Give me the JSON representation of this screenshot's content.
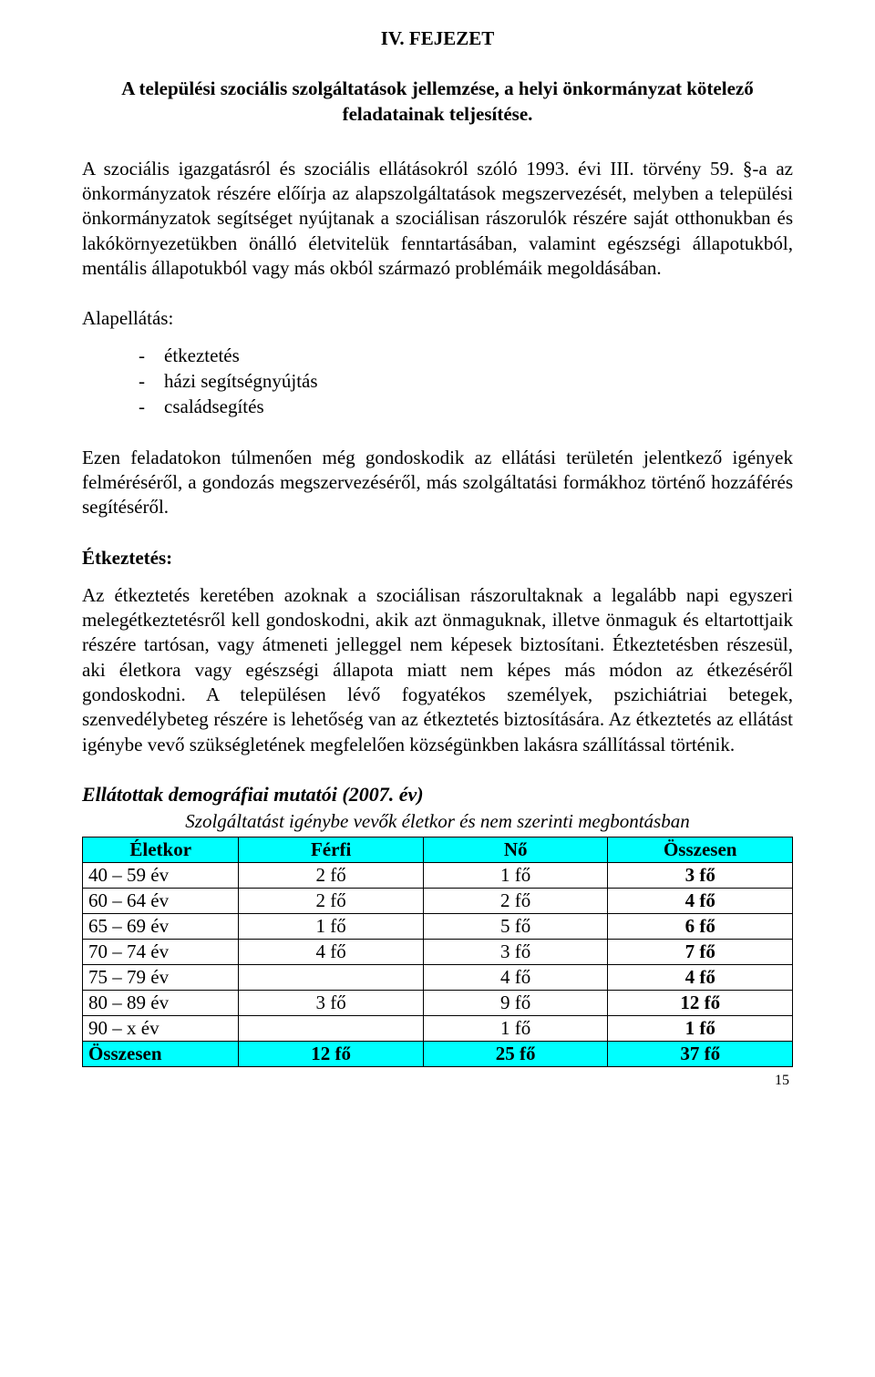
{
  "chapter": {
    "label": "IV. FEJEZET",
    "title": "A települési szociális szolgáltatások jellemzése, a helyi önkormányzat kötelező feladatainak teljesítése."
  },
  "intro": "A szociális igazgatásról és szociális ellátásokról szóló 1993. évi III. törvény 59. §-a az önkormányzatok részére előírja az alapszolgáltatások megszervezését, melyben a települési önkormányzatok segítséget nyújtanak a szociálisan rászorulók részére saját otthonukban és lakókörnyezetükben önálló életvitelük fenntartásában, valamint egészségi állapotukból, mentális állapotukból vagy más okból származó problémáik megoldásában.",
  "alapellatas": {
    "heading": "Alapellátás:",
    "items": [
      "étkeztetés",
      "házi segítségnyújtás",
      "családsegítés"
    ]
  },
  "para2": "Ezen feladatokon túlmenően még gondoskodik az ellátási területén jelentkező igények felméréséről, a gondozás megszervezéséről, más szolgáltatási formákhoz történő hozzáférés segítéséről.",
  "etkeztetes": {
    "heading": "Étkeztetés:",
    "body": "Az étkeztetés keretében azoknak a szociálisan rászorultaknak a legalább napi egyszeri melegétkeztetésről kell gondoskodni, akik azt önmaguknak, illetve önmaguk és eltartottjaik részére tartósan, vagy átmeneti jelleggel nem képesek biztosítani. Étkeztetésben részesül, aki életkora vagy egészségi állapota miatt nem képes más módon az étkezéséről gondoskodni. A településen lévő fogyatékos személyek, pszichiátriai betegek, szenvedélybeteg részére is lehetőség van az étkeztetés biztosítására.  Az étkeztetés az ellátást igénybe vevő szükségletének megfelelően községünkben lakásra szállítással történik."
  },
  "table_section": {
    "title": "Ellátottak demográfiai mutatói (2007. év)",
    "subtitle": "Szolgáltatást igénybe vevők életkor és nem szerinti megbontásban",
    "columns": [
      "Életkor",
      "Férfi",
      "Nő",
      "Összesen"
    ],
    "rows": [
      [
        "40 – 59 év",
        "2 fő",
        "1 fő",
        "3 fő"
      ],
      [
        "60 – 64 év",
        "2 fő",
        "2 fő",
        "4 fő"
      ],
      [
        "65 – 69 év",
        "1 fő",
        "5 fő",
        "6 fő"
      ],
      [
        "70 – 74 év",
        "4 fő",
        "3 fő",
        "7 fő"
      ],
      [
        "75 – 79 év",
        "",
        "4 fő",
        "4 fő"
      ],
      [
        "80 – 89 év",
        "3 fő",
        "9 fő",
        "12 fő"
      ],
      [
        "90 – x év",
        "",
        "1 fő",
        "1 fő"
      ]
    ],
    "footer": [
      "Összesen",
      "12 fő",
      "25 fő",
      "37 fő"
    ],
    "header_bg": "#00ffff",
    "border_color": "#000000",
    "fontsize": 21
  },
  "page_number": "15"
}
